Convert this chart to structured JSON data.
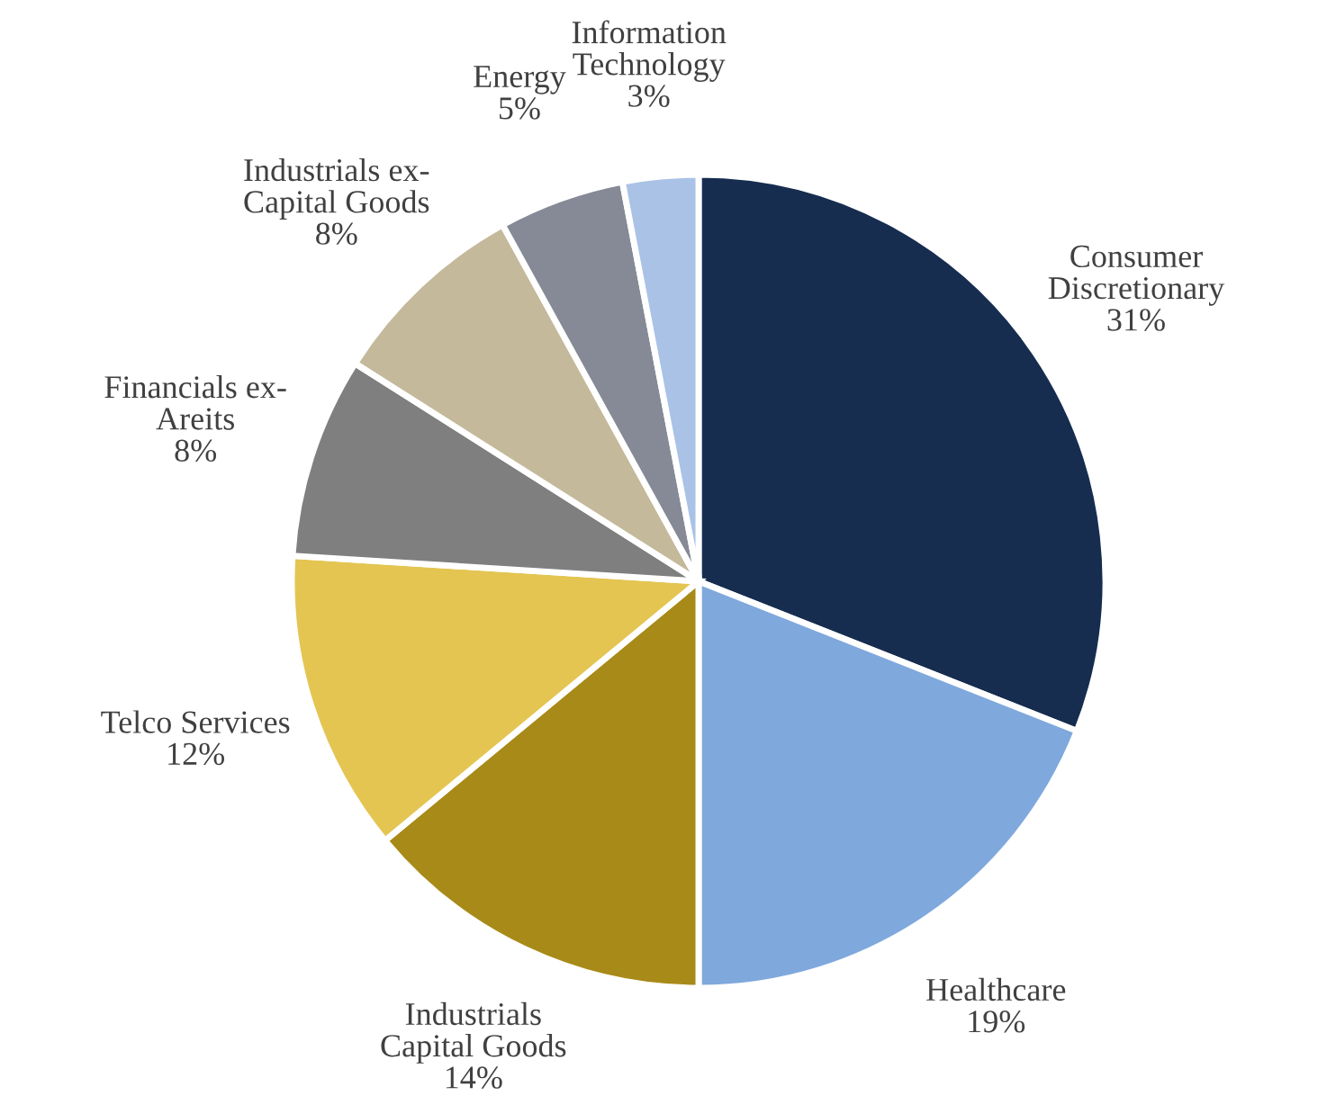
{
  "chart_data": {
    "type": "pie",
    "categories": [
      "Consumer\nDiscretionary",
      "Healthcare",
      "Industrials\nCapital Goods",
      "Telco Services",
      "Financials ex-\nAreits",
      "Industrials ex-\nCapital Goods",
      "Energy",
      "Information\nTechnology"
    ],
    "values": [
      31,
      19,
      14,
      12,
      8,
      8,
      5,
      3
    ],
    "value_labels": [
      "31%",
      "19%",
      "14%",
      "12%",
      "8%",
      "8%",
      "5%",
      "3%"
    ],
    "colors": [
      "#162d50",
      "#7fa8dd",
      "#a88a18",
      "#e4c552",
      "#7f7f7f",
      "#c4b99b",
      "#858a96",
      "#a9c2e6"
    ],
    "legend": false
  }
}
